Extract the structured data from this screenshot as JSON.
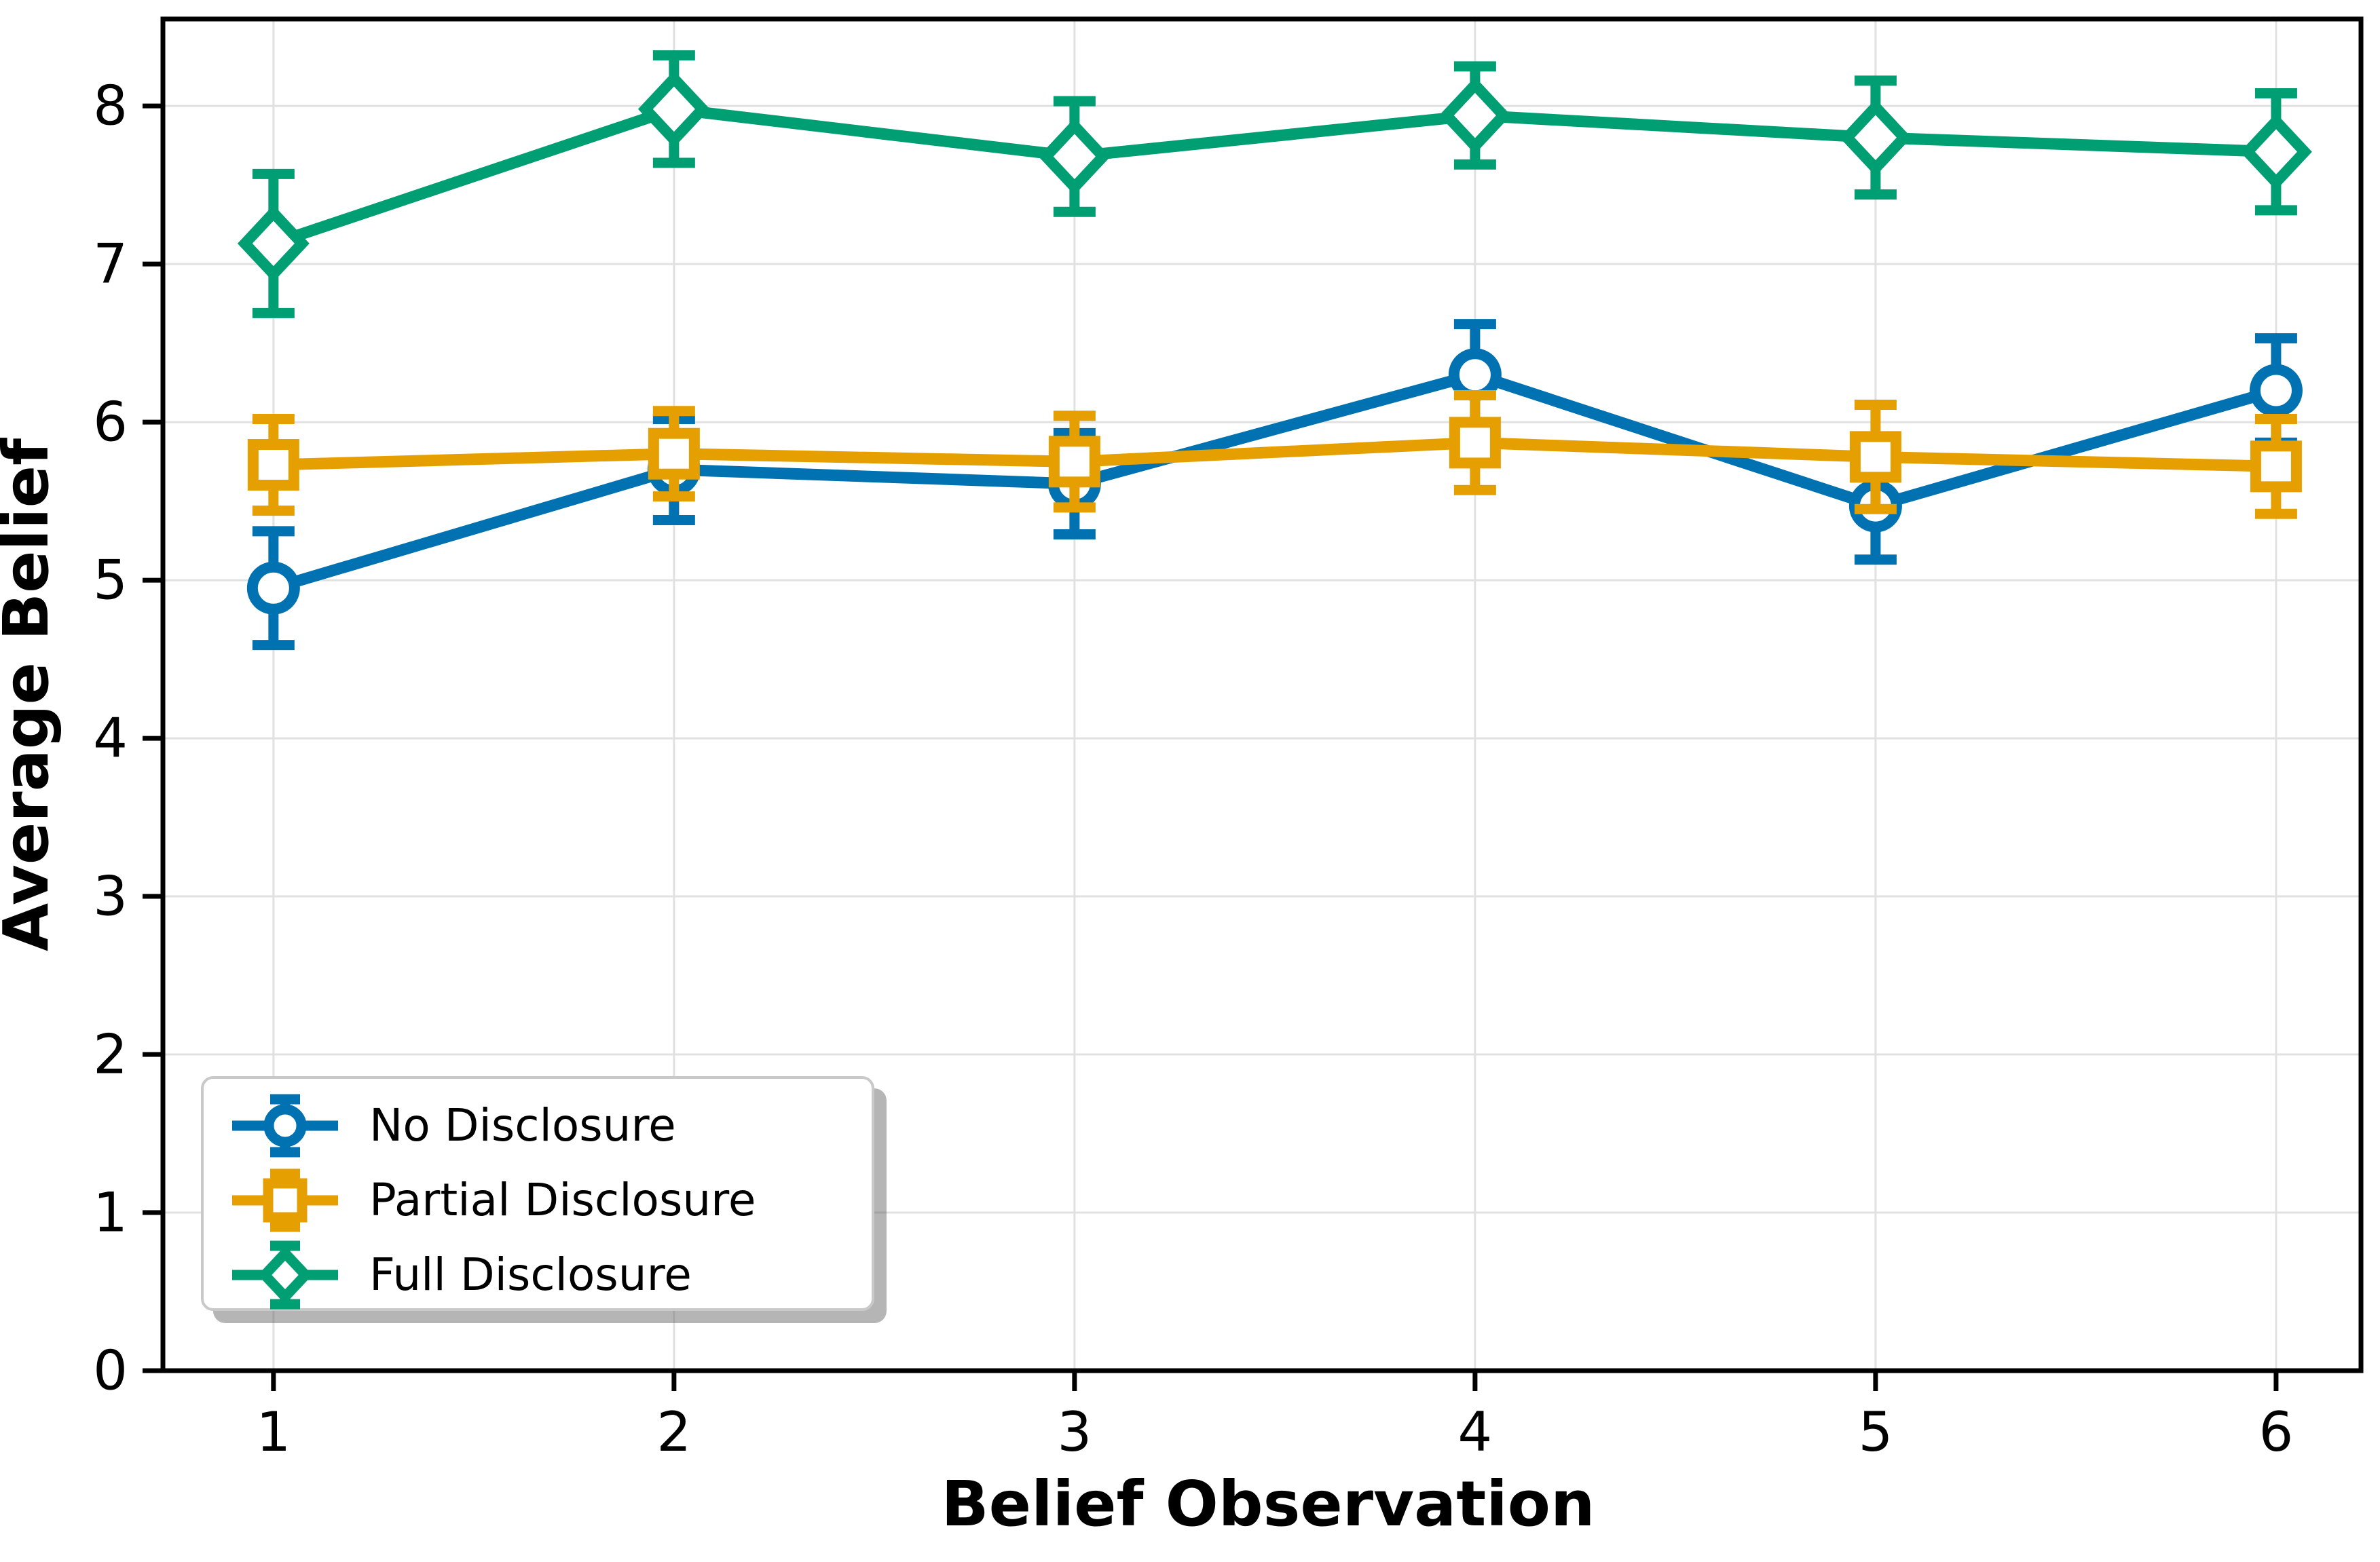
{
  "figure": {
    "background": "#ffffff"
  },
  "chart_data": {
    "type": "line",
    "title": "",
    "xlabel": "Belief Observation",
    "ylabel": "Average Belief",
    "x": [
      1,
      2,
      3,
      4,
      5,
      6
    ],
    "x_tick_labels": [
      "1",
      "2",
      "3",
      "4",
      "5",
      "6"
    ],
    "y_tick_values": [
      0,
      1,
      2,
      3,
      4,
      5,
      6,
      7,
      8
    ],
    "y_tick_labels": [
      "0",
      "1",
      "2",
      "3",
      "4",
      "5",
      "6",
      "7",
      "8"
    ],
    "xlim": [
      0.724,
      6.212
    ],
    "ylim": [
      0,
      8.55
    ],
    "grid": true,
    "legend_position": "lower left",
    "series": [
      {
        "name": "No Disclosure",
        "color": "#0072B2",
        "marker": "circle",
        "values": [
          4.95,
          5.7,
          5.61,
          6.3,
          5.47,
          6.2
        ],
        "errors": [
          0.36,
          0.32,
          0.32,
          0.32,
          0.34,
          0.33
        ]
      },
      {
        "name": "Partial Disclosure",
        "color": "#E69F00",
        "marker": "square",
        "values": [
          5.73,
          5.8,
          5.75,
          5.87,
          5.78,
          5.72
        ],
        "errors": [
          0.29,
          0.27,
          0.29,
          0.3,
          0.33,
          0.3
        ]
      },
      {
        "name": "Full Disclosure",
        "color": "#009E73",
        "marker": "diamond",
        "values": [
          7.13,
          7.98,
          7.68,
          7.94,
          7.8,
          7.71
        ],
        "errors": [
          0.44,
          0.34,
          0.35,
          0.31,
          0.36,
          0.37
        ]
      }
    ]
  },
  "style": {
    "grid_color": "#e1e1e1",
    "spine_color": "#000000",
    "tick_color": "#000000",
    "marker_face": "#ffffff"
  }
}
